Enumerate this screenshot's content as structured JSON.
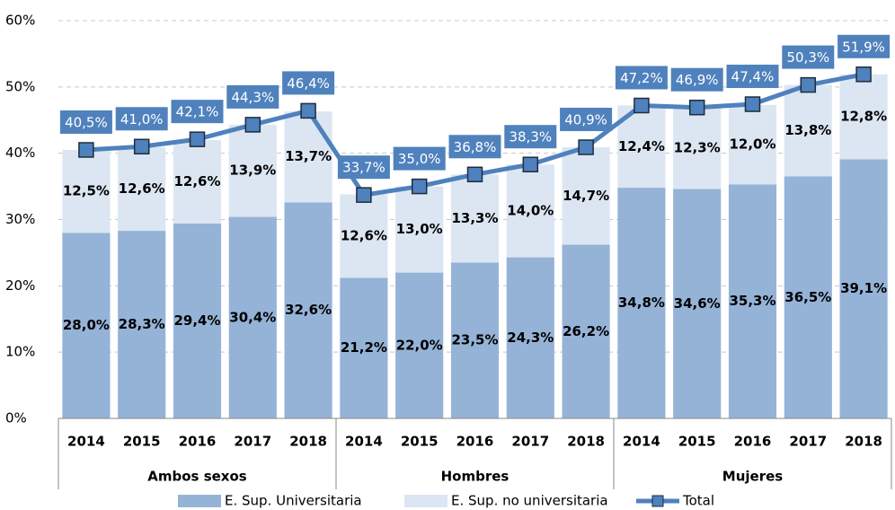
{
  "chart_data": {
    "type": "stacked-bar-line",
    "categories": [
      "2014",
      "2015",
      "2016",
      "2017",
      "2018",
      "2014",
      "2015",
      "2016",
      "2017",
      "2018",
      "2014",
      "2015",
      "2016",
      "2017",
      "2018"
    ],
    "groups": [
      "Ambos sexos",
      "Hombres",
      "Mujeres"
    ],
    "series": [
      {
        "name": "E. Sup. Universitaria",
        "color": "#95b3d7",
        "kind": "bar",
        "values": [
          28.0,
          28.3,
          29.4,
          30.4,
          32.6,
          21.2,
          22.0,
          23.5,
          24.3,
          26.2,
          34.8,
          34.6,
          35.3,
          36.5,
          39.1
        ],
        "value_labels": [
          "28,0%",
          "28,3%",
          "29,4%",
          "30,4%",
          "32,6%",
          "21,2%",
          "22,0%",
          "23,5%",
          "24,3%",
          "26,2%",
          "34,8%",
          "34,6%",
          "35,3%",
          "36,5%",
          "39,1%"
        ]
      },
      {
        "name": "E. Sup. no universitaria",
        "color": "#dce6f2",
        "kind": "bar",
        "values": [
          12.5,
          12.6,
          12.6,
          13.9,
          13.7,
          12.6,
          13.0,
          13.3,
          14.0,
          14.7,
          12.4,
          12.3,
          12.0,
          13.8,
          12.8
        ],
        "value_labels": [
          "12,5%",
          "12,6%",
          "12,6%",
          "13,9%",
          "13,7%",
          "12,6%",
          "13,0%",
          "13,3%",
          "14,0%",
          "14,7%",
          "12,4%",
          "12,3%",
          "12,0%",
          "13,8%",
          "12,8%"
        ]
      },
      {
        "name": "Total",
        "color": "#4f81bd",
        "kind": "line",
        "values": [
          40.5,
          41.0,
          42.1,
          44.3,
          46.4,
          33.7,
          35.0,
          36.8,
          38.3,
          40.9,
          47.2,
          46.9,
          47.4,
          50.3,
          51.9
        ],
        "value_labels": [
          "40,5%",
          "41,0%",
          "42,1%",
          "44,3%",
          "46,4%",
          "33,7%",
          "35,0%",
          "36,8%",
          "38,3%",
          "40,9%",
          "47,2%",
          "46,9%",
          "47,4%",
          "50,3%",
          "51,9%"
        ]
      }
    ],
    "ylim": [
      0,
      60
    ],
    "yticks": [
      {
        "value": 0,
        "label": "0%"
      },
      {
        "value": 10,
        "label": "10%"
      },
      {
        "value": 20,
        "label": "20%"
      },
      {
        "value": 30,
        "label": "30%"
      },
      {
        "value": 40,
        "label": "40%"
      },
      {
        "value": 50,
        "label": "50%"
      },
      {
        "value": 60,
        "label": "60%"
      }
    ],
    "grid": true,
    "legend": "bottom"
  }
}
